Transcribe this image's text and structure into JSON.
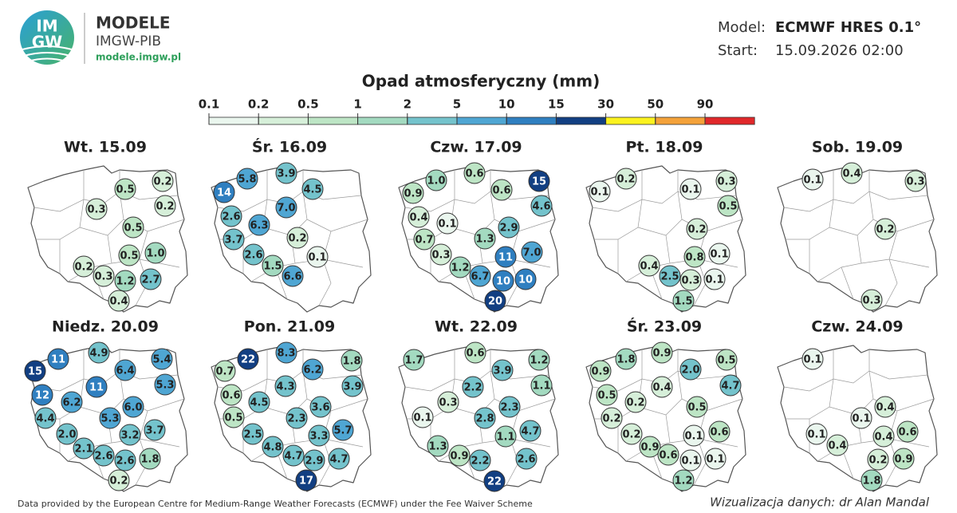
{
  "header": {
    "logo_mark": [
      "IM",
      "GW"
    ],
    "brand": "MODELE",
    "org": "IMGW-PIB",
    "url": "modele.imgw.pl",
    "model_label": "Model:",
    "model": "ECMWF HRES 0.1°",
    "start_label": "Start:",
    "start": "15.09.2026 02:00"
  },
  "legend": {
    "title": "Opad atmosferyczny (mm)",
    "ticks": [
      0.1,
      0.2,
      0.5,
      1,
      2,
      5,
      10,
      15,
      30,
      50,
      90
    ],
    "colors": [
      "#eaf6ee",
      "#d6efd9",
      "#bde5c5",
      "#a3dac0",
      "#74c3cc",
      "#4fa6d3",
      "#2f7fc0",
      "#123f82",
      "#fbf21f",
      "#f4a23a",
      "#e0282a"
    ]
  },
  "panels": [
    {
      "title": "Wt. 15.09",
      "values": [
        0.5,
        0.2,
        0.3,
        0.2,
        0.5,
        0.5,
        1.0,
        0.2,
        0.3,
        1.2,
        2.7,
        0.4
      ],
      "value_labels": [
        "0.5",
        "0.2",
        "0.3",
        "0.2",
        "0.5",
        "0.5",
        "1.0",
        "0.2",
        "0.3",
        "1.2",
        "2.7",
        "0.4"
      ]
    },
    {
      "title": "Śr. 16.09",
      "values": [
        5.8,
        3.9,
        14,
        4.5,
        7.0,
        2.6,
        6.3,
        3.7,
        0.2,
        2.6,
        0.1,
        1.5,
        6.6
      ],
      "value_labels": [
        "5.8",
        "3.9",
        "14",
        "4.5",
        "7.0",
        "2.6",
        "6.3",
        "3.7",
        "0.2",
        "2.6",
        "0.1",
        "1.5",
        "6.6"
      ]
    },
    {
      "title": "Czw. 17.09",
      "values": [
        1.0,
        0.6,
        15,
        0.9,
        0.6,
        4.6,
        0.4,
        0.1,
        2.9,
        0.7,
        1.3,
        0.3,
        11,
        7.0,
        1.2,
        6.7,
        10,
        10,
        20
      ],
      "value_labels": [
        "1.0",
        "0.6",
        "15",
        "0.9",
        "0.6",
        "4.6",
        "0.4",
        "0.1",
        "2.9",
        "0.7",
        "1.3",
        "0.3",
        "11",
        "7.0",
        "1.2",
        "6.7",
        "10",
        "10",
        "20"
      ]
    },
    {
      "title": "Pt. 18.09",
      "values": [
        0.2,
        0.3,
        0.1,
        0.1,
        0.5,
        0.2,
        0.8,
        0.1,
        0.4,
        2.5,
        0.3,
        0.1,
        1.5
      ],
      "value_labels": [
        "0.2",
        "0.3",
        "0.1",
        "0.1",
        "0.5",
        "0.2",
        "0.8",
        "0.1",
        "0.4",
        "2.5",
        "0.3",
        "0.1",
        "1.5"
      ]
    },
    {
      "title": "Sob. 19.09",
      "values": [
        0.1,
        0.4,
        0.3,
        0.2,
        0.3
      ],
      "value_labels": [
        "0.1",
        "0.4",
        "0.3",
        "0.2",
        "0.3"
      ]
    },
    {
      "title": "Niedz. 20.09",
      "values": [
        11,
        4.9,
        5.4,
        15,
        6.4,
        5.3,
        12,
        11,
        6.2,
        6.0,
        4.4,
        5.3,
        3.7,
        3.2,
        2.0,
        2.1,
        2.6,
        2.6,
        1.8,
        0.2
      ],
      "value_labels": [
        "11",
        "4.9",
        "5.4",
        "15",
        "6.4",
        "5.3",
        "12",
        "11",
        "6.2",
        "6.0",
        "4.4",
        "5.3",
        "3.7",
        "3.2",
        "2.0",
        "2.1",
        "2.6",
        "2.6",
        "1.8",
        "0.2"
      ]
    },
    {
      "title": "Pon. 21.09",
      "values": [
        22,
        8.3,
        1.8,
        0.7,
        6.2,
        3.9,
        4.3,
        0.6,
        4.5,
        3.6,
        0.5,
        2.3,
        5.7,
        3.3,
        2.5,
        4.8,
        4.7,
        2.9,
        4.7,
        17
      ],
      "value_labels": [
        "22",
        "8.3",
        "1.8",
        "0.7",
        "6.2",
        "3.9",
        "4.3",
        "0.6",
        "4.5",
        "3.6",
        "0.5",
        "2.3",
        "5.7",
        "3.3",
        "2.5",
        "4.8",
        "4.7",
        "2.9",
        "4.7",
        "17"
      ]
    },
    {
      "title": "Wt. 22.09",
      "values": [
        1.7,
        0.6,
        1.2,
        3.9,
        1.1,
        2.2,
        0.3,
        2.3,
        0.1,
        2.8,
        4.7,
        1.1,
        1.3,
        0.9,
        2.2,
        2.6,
        22
      ],
      "value_labels": [
        "1.7",
        "0.6",
        "1.2",
        "3.9",
        "1.1",
        "2.2",
        "0.3",
        "2.3",
        "0.1",
        "2.8",
        "4.7",
        "1.1",
        "1.3",
        "0.9",
        "2.2",
        "2.6",
        "22"
      ]
    },
    {
      "title": "Śr. 23.09",
      "values": [
        1.8,
        0.9,
        0.5,
        0.9,
        2.0,
        4.7,
        0.4,
        0.5,
        0.2,
        0.5,
        0.2,
        0.2,
        0.1,
        0.6,
        0.9,
        0.6,
        0.1,
        0.1,
        1.2
      ],
      "value_labels": [
        "1.8",
        "0.9",
        "0.5",
        "0.9",
        "2.0",
        "4.7",
        "0.4",
        "0.5",
        "0.2",
        "0.5",
        "0.2",
        "0.2",
        "0.1",
        "0.6",
        "0.9",
        "0.6",
        "0.1",
        "0.1",
        "1.2"
      ]
    },
    {
      "title": "Czw. 24.09",
      "values": [
        0.1,
        0.4,
        0.1,
        0.1,
        0.4,
        0.6,
        0.4,
        0.2,
        0.9,
        1.8
      ],
      "value_labels": [
        "0.1",
        "0.4",
        "0.1",
        "0.1",
        "0.4",
        "0.6",
        "0.4",
        "0.2",
        "0.9",
        "1.8"
      ]
    }
  ],
  "footer": {
    "source": "Data provided by the European Centre for Medium-Range Weather Forecasts (ECMWF) under the Fee Waiver Scheme",
    "credit": "Wizualizacja danych: dr Alan Mandal"
  }
}
